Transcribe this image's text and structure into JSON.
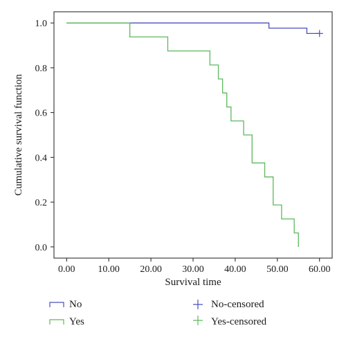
{
  "chart_data": {
    "type": "line",
    "subtype": "kaplan-meier step",
    "title": "",
    "xlabel": "Survival time",
    "ylabel": "Cumulative survival function",
    "xlim": [
      -3,
      63
    ],
    "ylim": [
      -0.05,
      1.05
    ],
    "xticks": [
      0,
      10,
      20,
      30,
      40,
      50,
      60
    ],
    "xtick_labels": [
      "0.00",
      "10.00",
      "20.00",
      "30.00",
      "40.00",
      "50.00",
      "60.00"
    ],
    "yticks": [
      0,
      0.2,
      0.4,
      0.6,
      0.8,
      1.0
    ],
    "ytick_labels": [
      "0.0",
      "0.2",
      "0.4",
      "0.6",
      "0.8",
      "1.0"
    ],
    "grid": false,
    "legend_position": "bottom",
    "series": [
      {
        "name": "No",
        "color": "#4a4fbf",
        "x": [
          0,
          48,
          57,
          60
        ],
        "y": [
          1.0,
          0.977,
          0.953,
          0.953
        ]
      },
      {
        "name": "Yes",
        "color": "#5cb85c",
        "x": [
          0,
          15,
          24,
          34,
          36,
          37,
          38,
          39,
          42,
          44,
          47,
          49,
          51,
          54,
          55
        ],
        "y": [
          1.0,
          0.9375,
          0.875,
          0.8125,
          0.75,
          0.6875,
          0.625,
          0.5625,
          0.5,
          0.375,
          0.3125,
          0.1875,
          0.125,
          0.0625,
          0.0
        ]
      }
    ],
    "censored": [
      {
        "name": "No-censored",
        "color": "#4a4fbf",
        "points": [
          {
            "x": 60,
            "y": 0.953
          }
        ]
      },
      {
        "name": "Yes-censored",
        "color": "#5cb85c",
        "points": []
      }
    ]
  }
}
